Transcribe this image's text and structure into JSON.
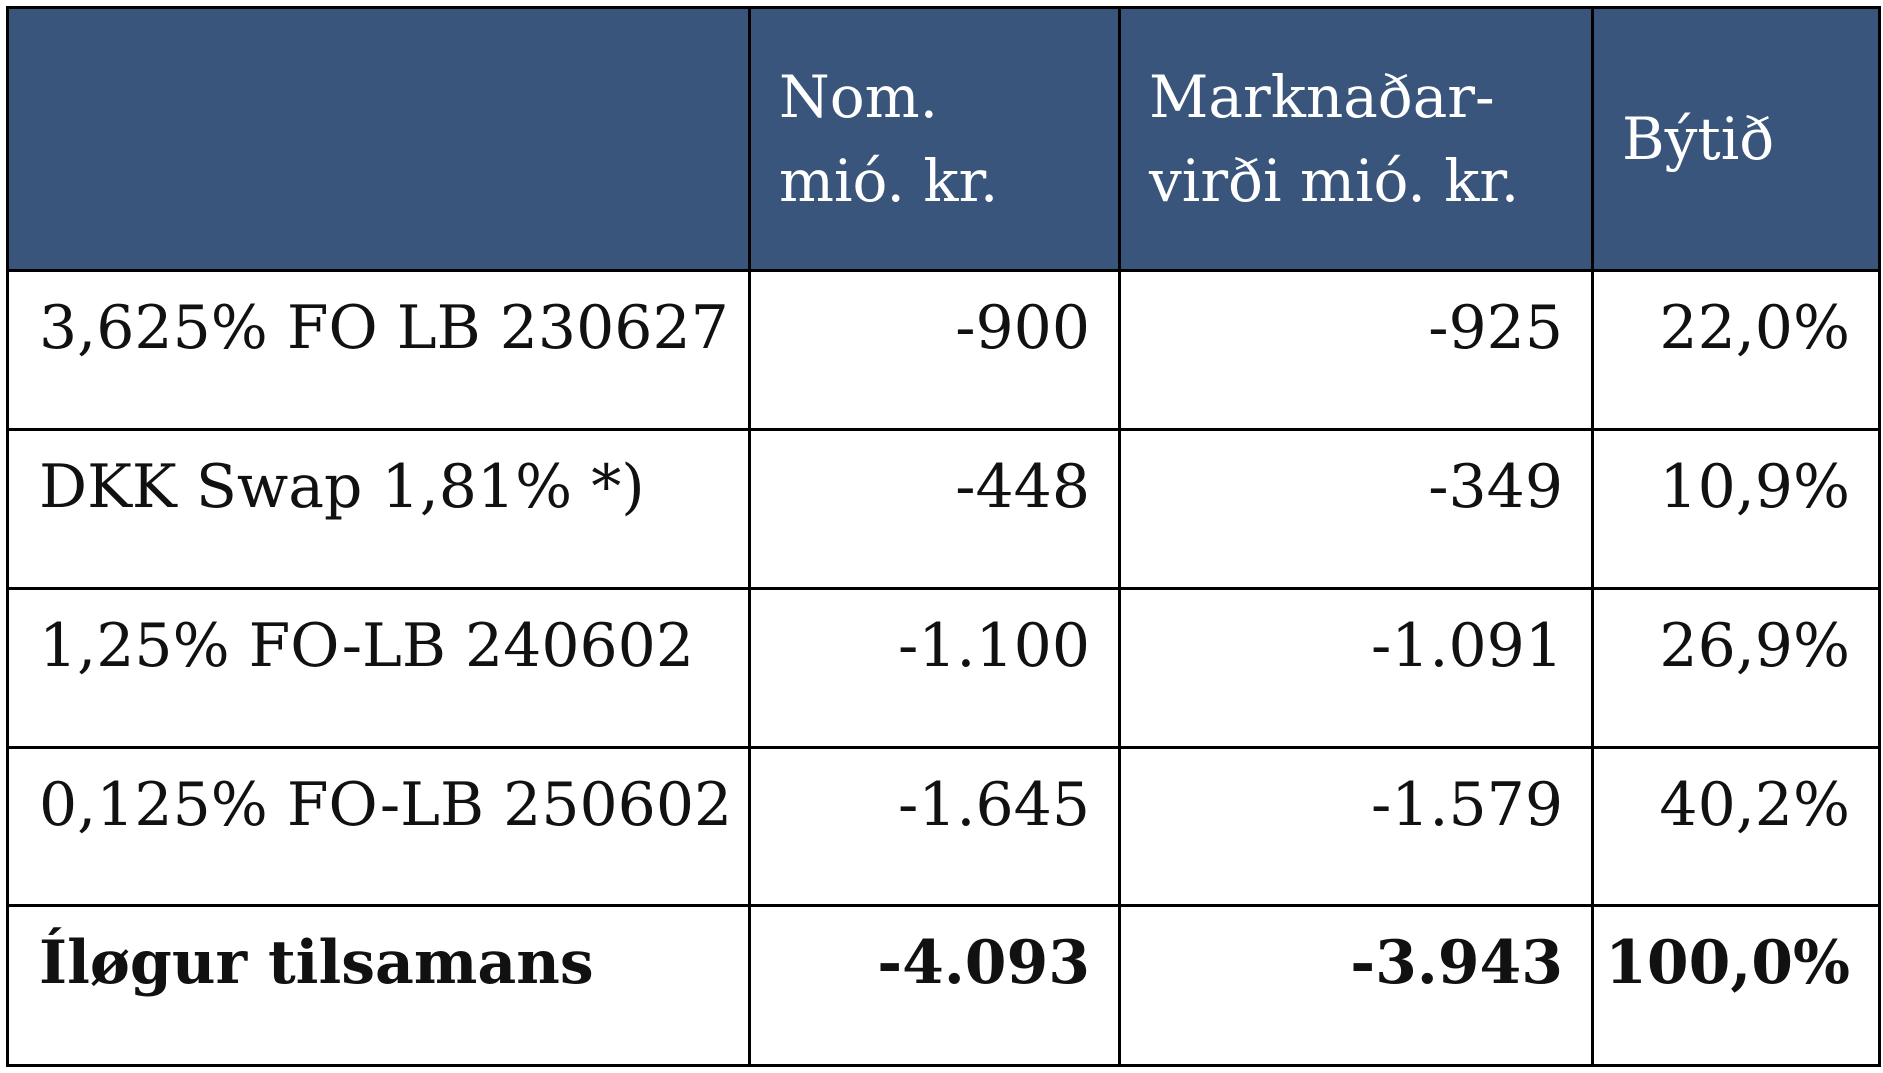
{
  "table": {
    "header": [
      [
        "Nom.",
        "mió. kr."
      ],
      [
        "Marknaðar-",
        "virði mió. kr."
      ],
      [
        "Býtið"
      ]
    ],
    "rows": [
      [
        "3,625% FO LB 230627",
        "-900",
        "-925",
        "22,0%"
      ],
      [
        "DKK Swap 1,81% *)",
        "-448",
        "-349",
        "10,9%"
      ],
      [
        "1,25% FO-LB 240602",
        "-1.100",
        "-1.091",
        "26,9%"
      ],
      [
        "0,125% FO-LB 250602",
        "-1.645",
        "-1.579",
        "40,2%"
      ],
      [
        "Íløgur tilsamans",
        "-4.093",
        "-3.943",
        "100,0%"
      ]
    ]
  }
}
